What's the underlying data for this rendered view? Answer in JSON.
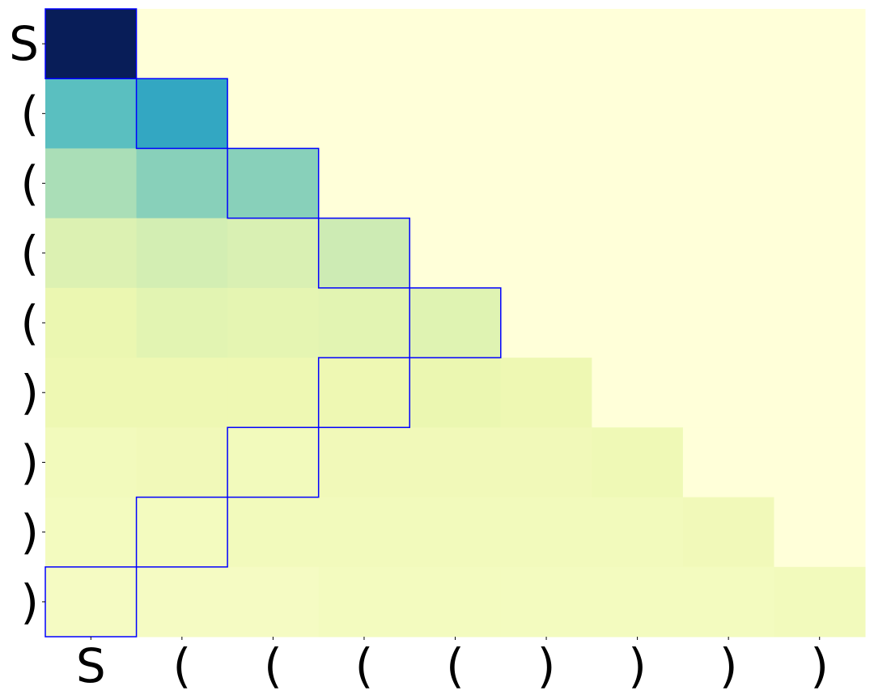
{
  "chart_data": {
    "type": "heatmap",
    "title": "",
    "xlabel": "",
    "ylabel": "",
    "x_tick_labels": [
      "S",
      "(",
      "(",
      "(",
      "(",
      ")",
      ")",
      ")",
      ")"
    ],
    "y_tick_labels": [
      "S",
      "(",
      "(",
      "(",
      "(",
      ")",
      ")",
      ")",
      ")"
    ],
    "colormap": "YlGnBu",
    "value_range": [
      0,
      1
    ],
    "masked_color": "#ffffd9",
    "values": [
      [
        1.0,
        null,
        null,
        null,
        null,
        null,
        null,
        null,
        null
      ],
      [
        0.45,
        0.55,
        null,
        null,
        null,
        null,
        null,
        null,
        null
      ],
      [
        0.3,
        0.36,
        0.36,
        null,
        null,
        null,
        null,
        null,
        null
      ],
      [
        0.18,
        0.21,
        0.19,
        0.23,
        null,
        null,
        null,
        null,
        null
      ],
      [
        0.13,
        0.16,
        0.15,
        0.16,
        0.17,
        null,
        null,
        null,
        null
      ],
      [
        0.12,
        0.12,
        0.12,
        0.12,
        0.13,
        0.12,
        null,
        null,
        null
      ],
      [
        0.09,
        0.1,
        0.09,
        0.1,
        0.1,
        0.1,
        0.11,
        null,
        null
      ],
      [
        0.08,
        0.08,
        0.09,
        0.09,
        0.09,
        0.09,
        0.09,
        0.1,
        null
      ],
      [
        0.07,
        0.07,
        0.07,
        0.08,
        0.08,
        0.08,
        0.08,
        0.08,
        0.09
      ]
    ],
    "highlight_color": "#0000ff",
    "highlighted_cells": [
      [
        0,
        0
      ],
      [
        1,
        1
      ],
      [
        2,
        2
      ],
      [
        3,
        3
      ],
      [
        4,
        4
      ],
      [
        5,
        3
      ],
      [
        6,
        2
      ],
      [
        7,
        1
      ],
      [
        8,
        0
      ]
    ],
    "grid": false,
    "legend": "none"
  }
}
